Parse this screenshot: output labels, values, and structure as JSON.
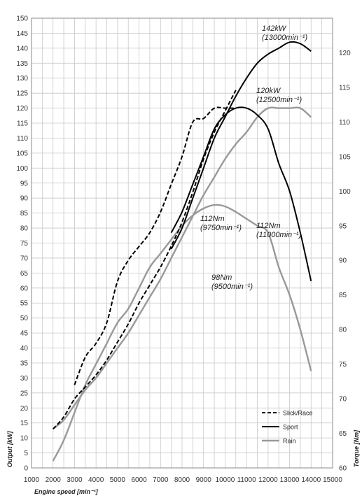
{
  "chart_data": {
    "type": "line",
    "x": [
      2000,
      2500,
      3000,
      3500,
      4000,
      4500,
      5000,
      5500,
      6000,
      6500,
      7000,
      7500,
      8000,
      8500,
      9000,
      9500,
      10000,
      10500,
      11000,
      11500,
      12000,
      12500,
      13000,
      13500,
      14000
    ],
    "xlabel": "Engine speed [min⁻¹]",
    "ylabel": "Output [kW]",
    "y2label": "Torque [Nm]",
    "xlim": [
      1000,
      15000
    ],
    "ylim": [
      0,
      150
    ],
    "y2lim": [
      60,
      125
    ],
    "x_ticks": [
      "1000",
      "2000",
      "3000",
      "4000",
      "5000",
      "6000",
      "7000",
      "8000",
      "9000",
      "10000",
      "11000",
      "12000",
      "13000",
      "14000",
      "15000"
    ],
    "y_ticks": [
      "0",
      "5",
      "10",
      "15",
      "20",
      "25",
      "30",
      "35",
      "40",
      "45",
      "50",
      "55",
      "60",
      "65",
      "70",
      "75",
      "80",
      "85",
      "90",
      "95",
      "100",
      "105",
      "110",
      "115",
      "120",
      "125",
      "130",
      "135",
      "140",
      "145",
      "150"
    ],
    "y2_ticks": [
      "60",
      "65",
      "70",
      "75",
      "80",
      "85",
      "90",
      "95",
      "100",
      "105",
      "110",
      "115",
      "120"
    ],
    "grid": true,
    "legend_position": "bottom-right",
    "series": [
      {
        "name": "Slick/Race",
        "kind": "power",
        "color": "#000000",
        "dash": "dashed",
        "values": [
          13,
          17,
          23,
          27,
          31,
          36,
          42,
          48,
          55,
          61,
          67,
          74,
          82,
          92,
          103,
          112,
          119,
          126,
          null,
          null,
          null,
          null,
          null,
          null,
          null
        ]
      },
      {
        "name": "Sport",
        "kind": "power",
        "color": "#000000",
        "dash": "solid",
        "values": [
          null,
          null,
          null,
          null,
          null,
          null,
          null,
          null,
          null,
          null,
          null,
          73,
          80,
          90,
          100,
          110,
          117,
          124,
          130,
          135,
          138,
          140,
          142,
          141.5,
          139
        ]
      },
      {
        "name": "Rain",
        "kind": "power",
        "color": "#999999",
        "dash": "solid",
        "values": [
          13,
          16,
          21,
          26,
          30,
          35,
          40,
          45,
          51,
          57,
          63,
          70,
          77,
          84,
          91,
          97,
          103,
          108,
          112,
          117,
          120,
          120,
          120,
          120,
          117
        ]
      },
      {
        "name": "Slick/Race",
        "kind": "torque",
        "color": "#000000",
        "dash": "dashed",
        "values": [
          null,
          null,
          72,
          76,
          78,
          81,
          87,
          90,
          92,
          94,
          97,
          101,
          105,
          110,
          110.5,
          112,
          112,
          112,
          null,
          null,
          null,
          null,
          null,
          null,
          null
        ]
      },
      {
        "name": "Sport",
        "kind": "torque",
        "color": "#000000",
        "dash": "solid",
        "values": [
          null,
          null,
          null,
          null,
          null,
          null,
          null,
          null,
          null,
          null,
          null,
          94,
          97,
          101,
          105,
          109,
          111,
          112,
          112,
          111,
          109,
          104,
          100,
          94,
          87
        ]
      },
      {
        "name": "Rain",
        "kind": "torque",
        "color": "#999999",
        "dash": "solid",
        "values": [
          61,
          64,
          68,
          72,
          75,
          78,
          81,
          83,
          86,
          89,
          91,
          93,
          95,
          96.5,
          97.5,
          98,
          97.8,
          97,
          96,
          95,
          94,
          89,
          85,
          80,
          74
        ]
      }
    ],
    "annotations": [
      {
        "line1": "142kW",
        "line2": "(13000min⁻¹)"
      },
      {
        "line1": "120kW",
        "line2": "(12500min⁻¹)"
      },
      {
        "line1": "112Nm",
        "line2": "(9750min⁻¹)"
      },
      {
        "line1": "112Nm",
        "line2": "(11000min⁻¹)"
      },
      {
        "line1": "98Nm",
        "line2": "(9500min⁻¹)"
      }
    ]
  }
}
